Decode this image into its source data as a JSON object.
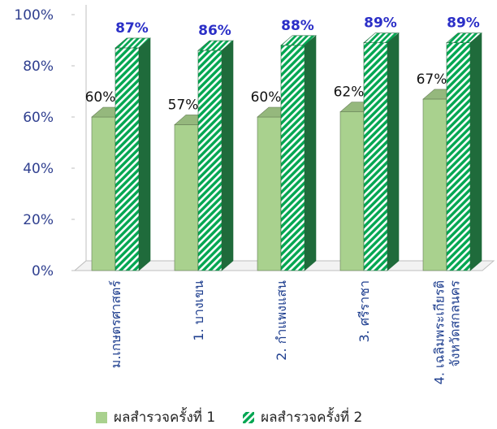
{
  "chart_data": {
    "type": "bar",
    "categories": [
      "ม.เกษตรศาสตร์",
      "1. บางเขน",
      "2. กำแพงแสน",
      "3. ศรีราชา",
      "4. เฉลิมพระเกียรติ จังหวัดสกลนคร"
    ],
    "category_lines": [
      [
        "ม.เกษตรศาสตร์"
      ],
      [
        "1. บางเขน"
      ],
      [
        "2. กำแพงแสน"
      ],
      [
        "3. ศรีราชา"
      ],
      [
        "4. เฉลิมพระเกียรติ",
        "จังหวัดสกลนคร"
      ]
    ],
    "series": [
      {
        "name": "ผลสำรวจครั้งที่ 1",
        "values": [
          60,
          57,
          60,
          62,
          67
        ],
        "color": "#a9d18e",
        "label_color": "#111111"
      },
      {
        "name": "ผลสำรวจครั้งที่ 2",
        "values": [
          87,
          86,
          88,
          89,
          89
        ],
        "color": "#00a651",
        "pattern": "diagonal-hatch",
        "label_color": "#2b2fc7"
      }
    ],
    "yticks": [
      "0%",
      "20%",
      "40%",
      "60%",
      "80%",
      "100%"
    ],
    "ylim": [
      0,
      100
    ],
    "grid": false,
    "legend_position": "bottom",
    "style": "3d"
  }
}
